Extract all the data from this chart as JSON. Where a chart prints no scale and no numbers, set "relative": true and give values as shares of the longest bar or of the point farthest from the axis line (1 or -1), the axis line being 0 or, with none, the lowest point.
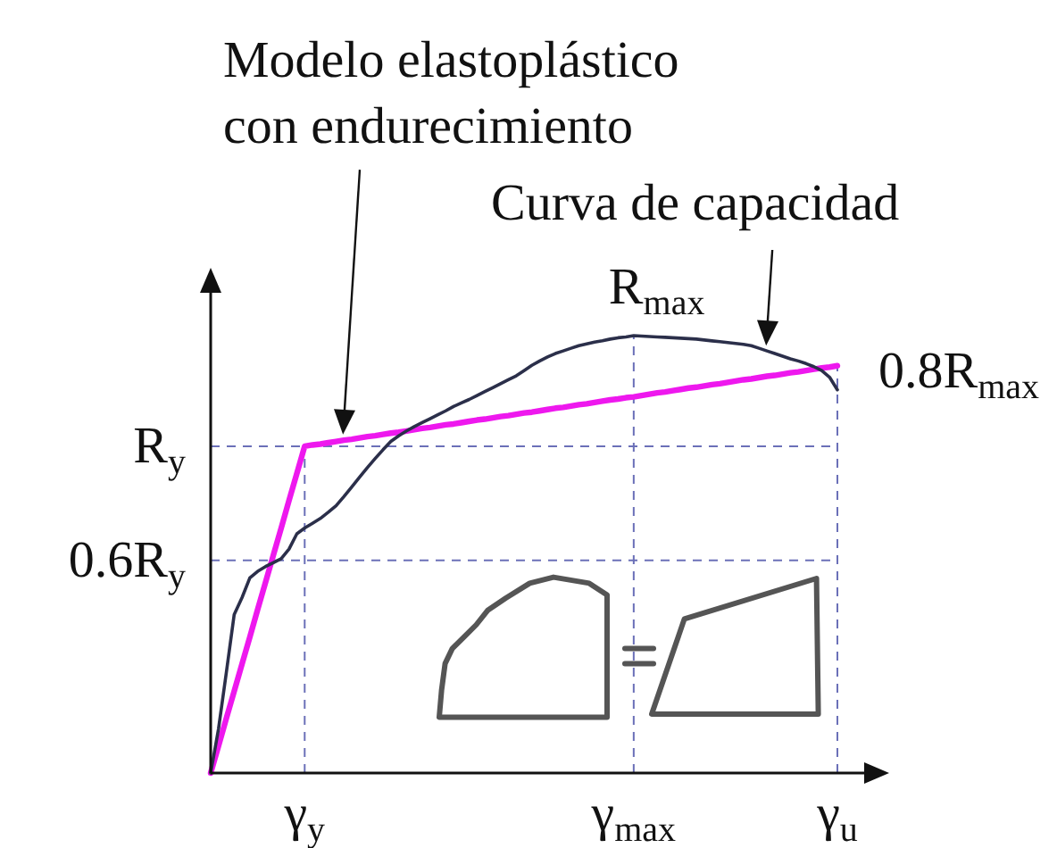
{
  "chart_data": {
    "type": "line",
    "relative": true,
    "tick_labels": "x",
    "grid": "x",
    "categories": [
      null,
      null,
      null,
      null,
      null,
      null,
      null,
      null,
      null,
      null,
      null,
      null,
      "γ$_{y}$",
      null,
      null,
      null,
      null,
      null,
      null,
      null,
      null,
      null,
      null,
      null,
      null,
      null,
      null,
      null,
      null,
      null,
      null,
      null,
      null,
      null,
      null,
      null,
      null,
      null,
      null,
      null,
      null,
      null,
      null,
      null,
      null,
      null,
      null,
      null,
      null,
      null,
      null,
      null,
      null,
      null,
      "γ$_{max}$",
      null,
      null,
      null,
      null,
      null,
      null,
      null,
      null,
      null,
      null,
      null,
      null,
      null,
      null,
      null,
      null,
      null,
      null,
      null,
      null,
      null,
      null,
      null,
      null,
      null,
      "γ$_{u}$"
    ],
    "series": [
      {
        "color": "#2b2f4a",
        "values": [
          0,
          0.101,
          0.23,
          0.362,
          0.401,
          0.446,
          0.461,
          0.472,
          0.481,
          0.49,
          0.512,
          0.547,
          0.56,
          0.571,
          0.582,
          0.596,
          0.611,
          0.632,
          0.654,
          0.676,
          0.698,
          0.719,
          0.739,
          0.758,
          0.771,
          0.782,
          0.792,
          0.801,
          0.81,
          0.819,
          0.828,
          0.838,
          0.846,
          0.854,
          0.863,
          0.872,
          0.881,
          0.89,
          0.899,
          0.908,
          0.92,
          0.932,
          0.942,
          0.951,
          0.959,
          0.965,
          0.971,
          0.977,
          0.981,
          0.985,
          0.988,
          0.992,
          0.995,
          0.997,
          1,
          0.999,
          0.998,
          0.997,
          0.996,
          0.995,
          0.994,
          0.993,
          0.992,
          0.99,
          0.988,
          0.986,
          0.984,
          0.982,
          0.98,
          0.977,
          0.971,
          0.965,
          0.959,
          0.953,
          0.947,
          0.942,
          0.936,
          0.929,
          0.92,
          0.905,
          0.876
        ]
      },
      {
        "color": "#ee18ee",
        "values": [
          0,
          0.062,
          0.125,
          0.187,
          0.249,
          0.311,
          0.374,
          0.436,
          0.498,
          0.56,
          0.623,
          0.685,
          0.747,
          0.75,
          0.752,
          0.755,
          0.758,
          0.761,
          0.763,
          0.766,
          0.769,
          0.771,
          0.774,
          0.777,
          0.779,
          0.782,
          0.785,
          0.788,
          0.79,
          0.793,
          0.796,
          0.798,
          0.801,
          0.804,
          0.807,
          0.809,
          0.812,
          0.815,
          0.817,
          0.82,
          0.823,
          0.825,
          0.828,
          0.831,
          0.834,
          0.836,
          0.839,
          0.842,
          0.844,
          0.847,
          0.85,
          0.853,
          0.855,
          0.858,
          0.86,
          0.863,
          0.866,
          0.869,
          0.871,
          0.874,
          0.877,
          0.88,
          0.882,
          0.885,
          0.888,
          0.89,
          0.893,
          0.896,
          0.899,
          0.901,
          0.904,
          0.907,
          0.909,
          0.912,
          0.915,
          0.917,
          0.92,
          0.923,
          0.926,
          0.928,
          0.931
        ]
      }
    ],
    "ref_lines": [
      {
        "axis": "y",
        "value": 0.747,
        "label": "R$_{y}$",
        "color": "#6b70b8",
        "line_style": "dashed"
      },
      {
        "axis": "y",
        "value": 0.486,
        "label": "0.6R$_{y}$",
        "color": "#6b70b8",
        "line_style": "dashed"
      }
    ],
    "annotations": [
      "Modelo elastoplástico con endurecimiento",
      "Curva de capacidad",
      {
        "text": "R$_{max}$",
        "x": "γ$_{max}$",
        "y": 1
      },
      {
        "text": "0.8R$_{max}$",
        "x": "γ$_{u}$",
        "y": 0.931
      }
    ]
  }
}
